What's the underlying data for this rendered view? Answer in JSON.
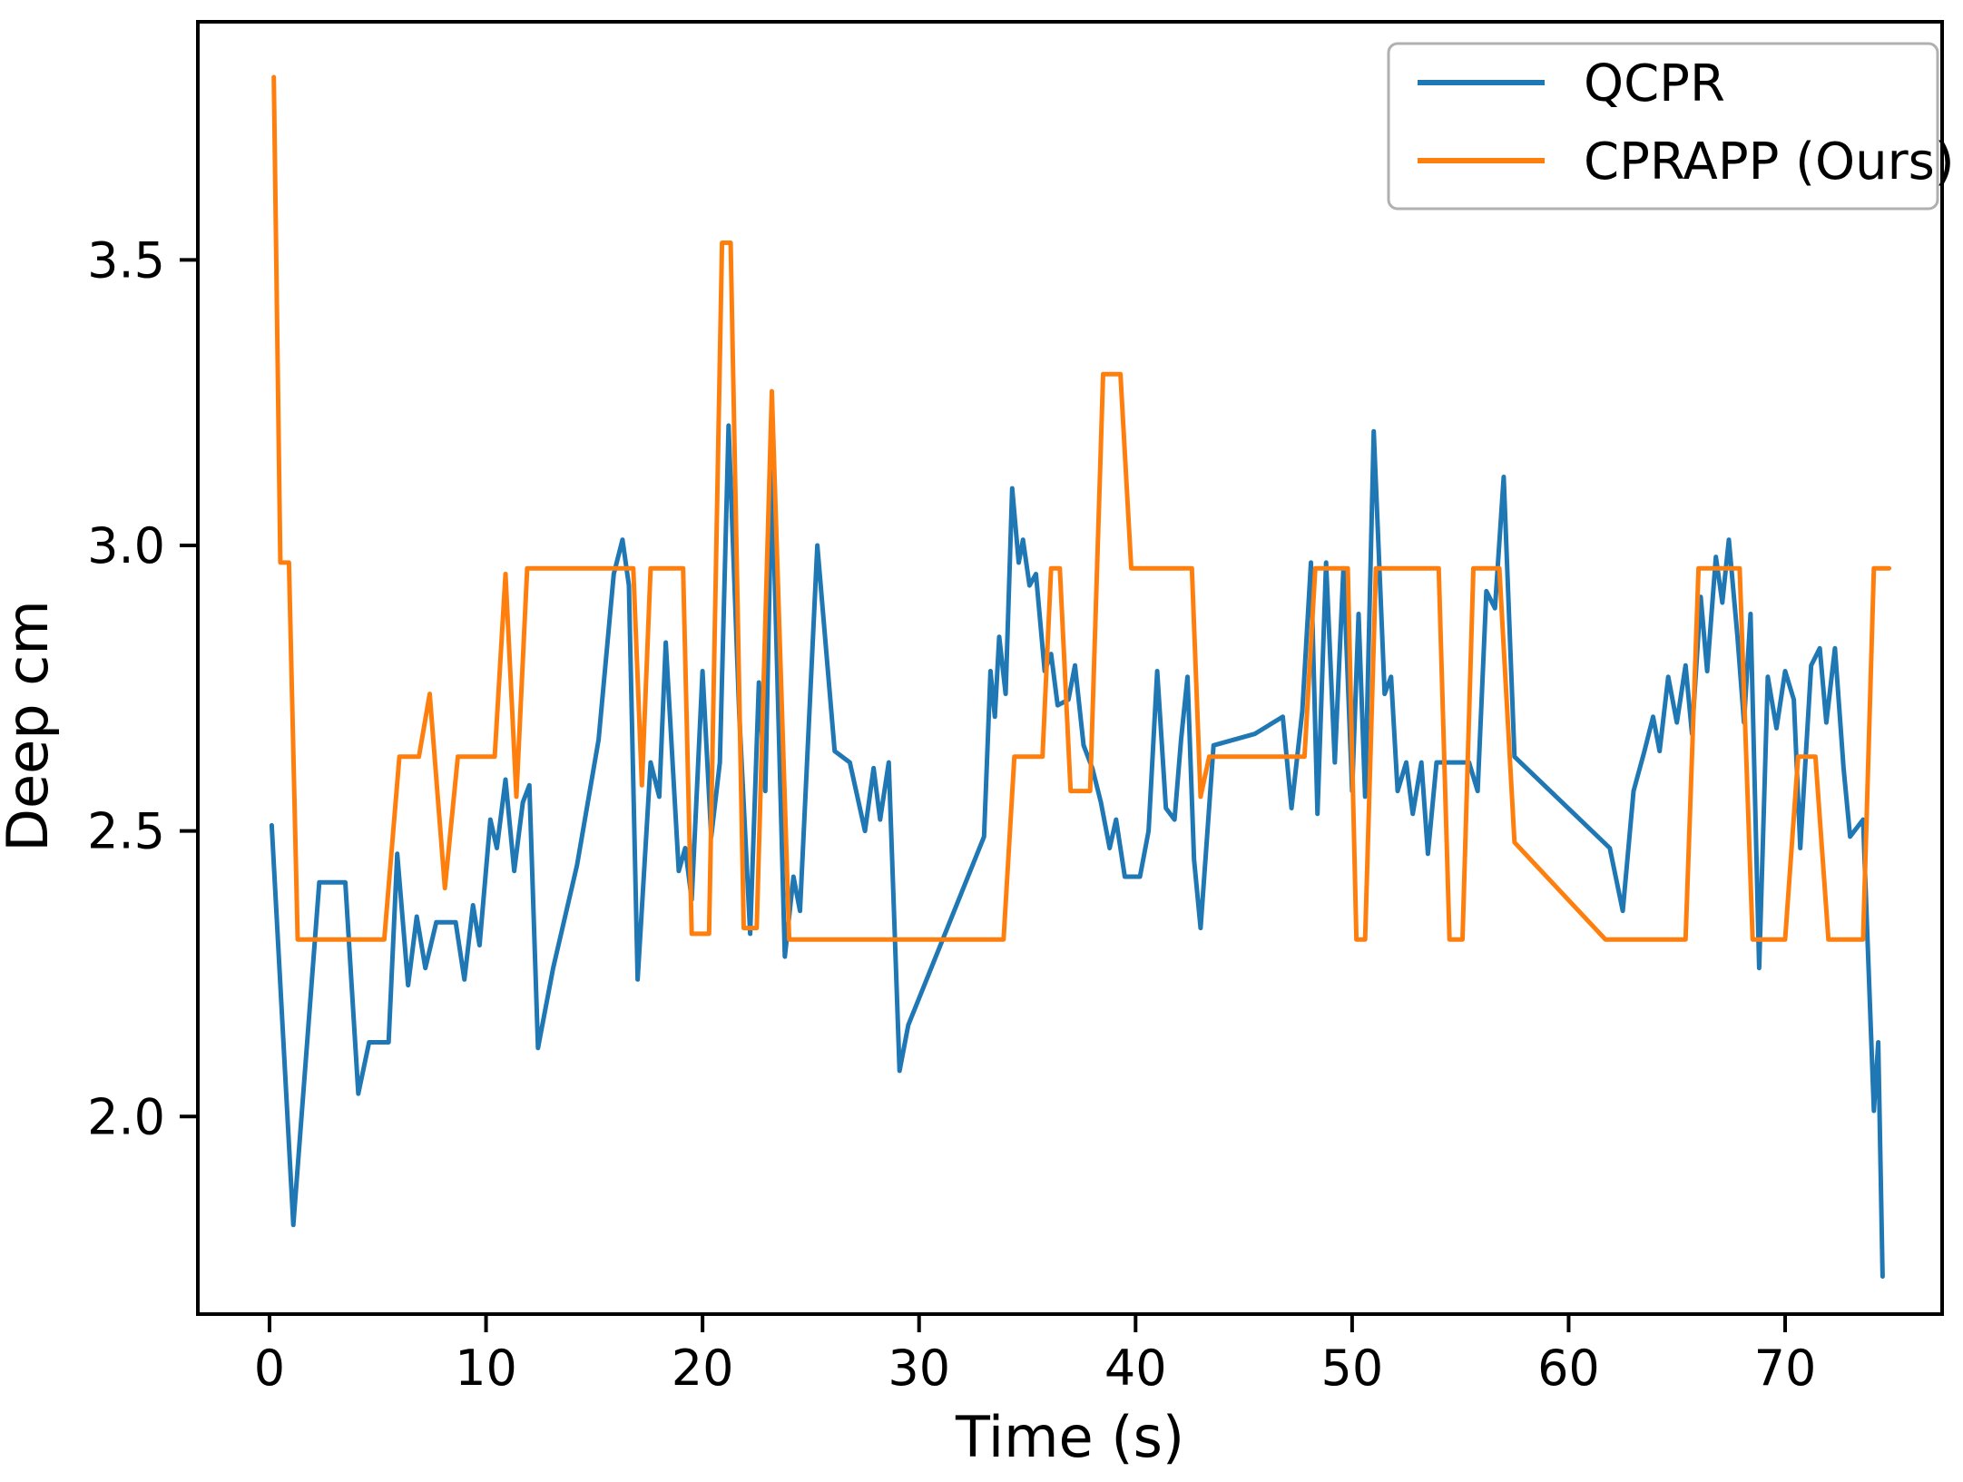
{
  "figure": {
    "background": "#ffffff"
  },
  "chart_data": {
    "type": "line",
    "title": "",
    "xlabel": "Time (s)",
    "ylabel": "Deep cm",
    "xlim": [
      -3.31,
      77.25
    ],
    "ylim": [
      1.654,
      3.917
    ],
    "x_ticks": [
      0,
      10,
      20,
      30,
      40,
      50,
      60,
      70
    ],
    "y_ticks": [
      2.0,
      2.5,
      3.0,
      3.5
    ],
    "grid": false,
    "legend": {
      "position": "upper right",
      "items": [
        "QCPR",
        "CPRAPP (Ours)"
      ]
    },
    "series": [
      {
        "name": "QCPR",
        "color": "#1f77b4",
        "points": [
          [
            0.1,
            2.51
          ],
          [
            1.1,
            1.81
          ],
          [
            2.3,
            2.41
          ],
          [
            3.5,
            2.41
          ],
          [
            4.1,
            2.04
          ],
          [
            4.6,
            2.13
          ],
          [
            5.5,
            2.13
          ],
          [
            5.9,
            2.46
          ],
          [
            6.4,
            2.23
          ],
          [
            6.8,
            2.35
          ],
          [
            7.2,
            2.26
          ],
          [
            7.7,
            2.34
          ],
          [
            8.6,
            2.34
          ],
          [
            9.0,
            2.24
          ],
          [
            9.4,
            2.37
          ],
          [
            9.7,
            2.3
          ],
          [
            10.2,
            2.52
          ],
          [
            10.5,
            2.47
          ],
          [
            10.9,
            2.59
          ],
          [
            11.3,
            2.43
          ],
          [
            11.7,
            2.55
          ],
          [
            12.0,
            2.58
          ],
          [
            12.4,
            2.12
          ],
          [
            13.1,
            2.26
          ],
          [
            14.2,
            2.44
          ],
          [
            15.2,
            2.66
          ],
          [
            15.9,
            2.95
          ],
          [
            16.3,
            3.01
          ],
          [
            16.6,
            2.93
          ],
          [
            17.0,
            2.24
          ],
          [
            17.6,
            2.62
          ],
          [
            18.0,
            2.56
          ],
          [
            18.3,
            2.83
          ],
          [
            18.9,
            2.43
          ],
          [
            19.2,
            2.47
          ],
          [
            19.5,
            2.38
          ],
          [
            20.0,
            2.78
          ],
          [
            20.4,
            2.49
          ],
          [
            20.8,
            2.62
          ],
          [
            21.2,
            3.21
          ],
          [
            21.7,
            2.7
          ],
          [
            22.2,
            2.32
          ],
          [
            22.6,
            2.76
          ],
          [
            22.9,
            2.57
          ],
          [
            23.2,
            3.13
          ],
          [
            23.8,
            2.28
          ],
          [
            24.2,
            2.42
          ],
          [
            24.5,
            2.36
          ],
          [
            25.3,
            3.0
          ],
          [
            26.1,
            2.64
          ],
          [
            26.8,
            2.62
          ],
          [
            27.5,
            2.5
          ],
          [
            27.9,
            2.61
          ],
          [
            28.2,
            2.52
          ],
          [
            28.6,
            2.62
          ],
          [
            29.1,
            2.08
          ],
          [
            29.5,
            2.16
          ],
          [
            33.0,
            2.49
          ],
          [
            33.3,
            2.78
          ],
          [
            33.5,
            2.7
          ],
          [
            33.7,
            2.84
          ],
          [
            34.0,
            2.74
          ],
          [
            34.3,
            3.1
          ],
          [
            34.6,
            2.97
          ],
          [
            34.8,
            3.01
          ],
          [
            35.1,
            2.93
          ],
          [
            35.4,
            2.95
          ],
          [
            35.8,
            2.78
          ],
          [
            36.1,
            2.81
          ],
          [
            36.4,
            2.72
          ],
          [
            36.9,
            2.73
          ],
          [
            37.2,
            2.79
          ],
          [
            37.6,
            2.65
          ],
          [
            38.0,
            2.61
          ],
          [
            38.4,
            2.55
          ],
          [
            38.8,
            2.47
          ],
          [
            39.1,
            2.52
          ],
          [
            39.5,
            2.42
          ],
          [
            40.2,
            2.42
          ],
          [
            40.6,
            2.5
          ],
          [
            41.0,
            2.78
          ],
          [
            41.4,
            2.54
          ],
          [
            41.8,
            2.52
          ],
          [
            42.1,
            2.66
          ],
          [
            42.4,
            2.77
          ],
          [
            42.7,
            2.45
          ],
          [
            43.0,
            2.33
          ],
          [
            43.6,
            2.65
          ],
          [
            45.5,
            2.67
          ],
          [
            46.8,
            2.7
          ],
          [
            47.2,
            2.54
          ],
          [
            47.7,
            2.71
          ],
          [
            48.1,
            2.97
          ],
          [
            48.4,
            2.53
          ],
          [
            48.8,
            2.97
          ],
          [
            49.2,
            2.62
          ],
          [
            49.6,
            2.96
          ],
          [
            50.0,
            2.57
          ],
          [
            50.3,
            2.88
          ],
          [
            50.6,
            2.56
          ],
          [
            51.0,
            3.2
          ],
          [
            51.5,
            2.74
          ],
          [
            51.8,
            2.77
          ],
          [
            52.1,
            2.57
          ],
          [
            52.5,
            2.62
          ],
          [
            52.8,
            2.53
          ],
          [
            53.2,
            2.62
          ],
          [
            53.5,
            2.46
          ],
          [
            53.9,
            2.62
          ],
          [
            55.4,
            2.62
          ],
          [
            55.8,
            2.57
          ],
          [
            56.2,
            2.92
          ],
          [
            56.6,
            2.89
          ],
          [
            57.0,
            3.12
          ],
          [
            57.5,
            2.63
          ],
          [
            61.9,
            2.47
          ],
          [
            62.5,
            2.36
          ],
          [
            63.0,
            2.57
          ],
          [
            63.5,
            2.64
          ],
          [
            63.9,
            2.7
          ],
          [
            64.2,
            2.64
          ],
          [
            64.6,
            2.77
          ],
          [
            65.0,
            2.69
          ],
          [
            65.4,
            2.79
          ],
          [
            65.7,
            2.67
          ],
          [
            66.1,
            2.91
          ],
          [
            66.4,
            2.78
          ],
          [
            66.8,
            2.98
          ],
          [
            67.1,
            2.9
          ],
          [
            67.4,
            3.01
          ],
          [
            67.8,
            2.84
          ],
          [
            68.1,
            2.69
          ],
          [
            68.4,
            2.88
          ],
          [
            68.8,
            2.26
          ],
          [
            69.2,
            2.77
          ],
          [
            69.6,
            2.68
          ],
          [
            70.0,
            2.78
          ],
          [
            70.4,
            2.73
          ],
          [
            70.7,
            2.47
          ],
          [
            71.2,
            2.79
          ],
          [
            71.6,
            2.82
          ],
          [
            71.9,
            2.69
          ],
          [
            72.3,
            2.82
          ],
          [
            72.7,
            2.61
          ],
          [
            73.0,
            2.49
          ],
          [
            73.6,
            2.52
          ],
          [
            74.1,
            2.01
          ],
          [
            74.3,
            2.13
          ],
          [
            74.5,
            1.72
          ]
        ]
      },
      {
        "name": "CPRAPP (Ours)",
        "color": "#ff7f0e",
        "points": [
          [
            0.2,
            3.82
          ],
          [
            0.5,
            2.97
          ],
          [
            0.9,
            2.97
          ],
          [
            1.3,
            2.31
          ],
          [
            5.3,
            2.31
          ],
          [
            6.0,
            2.63
          ],
          [
            6.9,
            2.63
          ],
          [
            7.4,
            2.74
          ],
          [
            8.1,
            2.4
          ],
          [
            8.7,
            2.63
          ],
          [
            10.4,
            2.63
          ],
          [
            10.9,
            2.95
          ],
          [
            11.4,
            2.56
          ],
          [
            11.9,
            2.96
          ],
          [
            16.8,
            2.96
          ],
          [
            17.2,
            2.58
          ],
          [
            17.6,
            2.96
          ],
          [
            19.1,
            2.96
          ],
          [
            19.5,
            2.32
          ],
          [
            20.3,
            2.32
          ],
          [
            20.9,
            3.53
          ],
          [
            21.3,
            3.53
          ],
          [
            21.9,
            2.33
          ],
          [
            22.5,
            2.33
          ],
          [
            23.2,
            3.27
          ],
          [
            24.0,
            2.31
          ],
          [
            33.9,
            2.31
          ],
          [
            34.4,
            2.63
          ],
          [
            35.7,
            2.63
          ],
          [
            36.1,
            2.96
          ],
          [
            36.5,
            2.96
          ],
          [
            37.0,
            2.57
          ],
          [
            37.9,
            2.57
          ],
          [
            38.5,
            3.3
          ],
          [
            39.3,
            3.3
          ],
          [
            39.8,
            2.96
          ],
          [
            42.6,
            2.96
          ],
          [
            43.0,
            2.56
          ],
          [
            43.4,
            2.63
          ],
          [
            47.8,
            2.63
          ],
          [
            48.3,
            2.96
          ],
          [
            49.8,
            2.96
          ],
          [
            50.2,
            2.31
          ],
          [
            50.6,
            2.31
          ],
          [
            51.1,
            2.96
          ],
          [
            54.0,
            2.96
          ],
          [
            54.5,
            2.31
          ],
          [
            55.1,
            2.31
          ],
          [
            55.6,
            2.96
          ],
          [
            56.8,
            2.96
          ],
          [
            57.5,
            2.48
          ],
          [
            61.7,
            2.31
          ],
          [
            65.4,
            2.31
          ],
          [
            66.0,
            2.96
          ],
          [
            67.9,
            2.96
          ],
          [
            68.5,
            2.31
          ],
          [
            70.0,
            2.31
          ],
          [
            70.6,
            2.63
          ],
          [
            71.4,
            2.63
          ],
          [
            72.0,
            2.31
          ],
          [
            73.6,
            2.31
          ],
          [
            74.1,
            2.96
          ],
          [
            74.8,
            2.96
          ]
        ]
      }
    ]
  }
}
